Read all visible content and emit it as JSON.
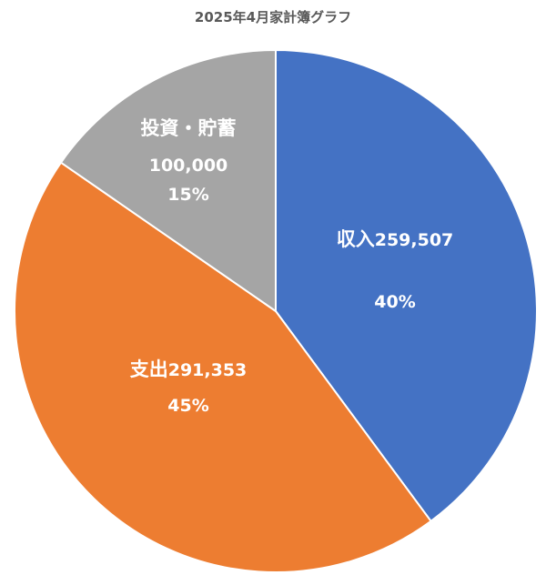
{
  "chart_data": {
    "type": "pie",
    "title": "2025年4月家計簿グラフ",
    "slices": [
      {
        "label": "収入",
        "value": 259507,
        "value_text": "259,507",
        "percent_text": "40%",
        "color": "#4472C4"
      },
      {
        "label": "支出",
        "value": 291353,
        "value_text": "291,353",
        "percent_text": "45%",
        "color": "#ED7D31"
      },
      {
        "label": "投資・貯蓄",
        "value": 100000,
        "value_text": "100,000",
        "percent_text": "15%",
        "color": "#A5A5A5"
      }
    ],
    "start_angle": "12 o'clock",
    "direction": "clockwise",
    "legend": "none"
  }
}
